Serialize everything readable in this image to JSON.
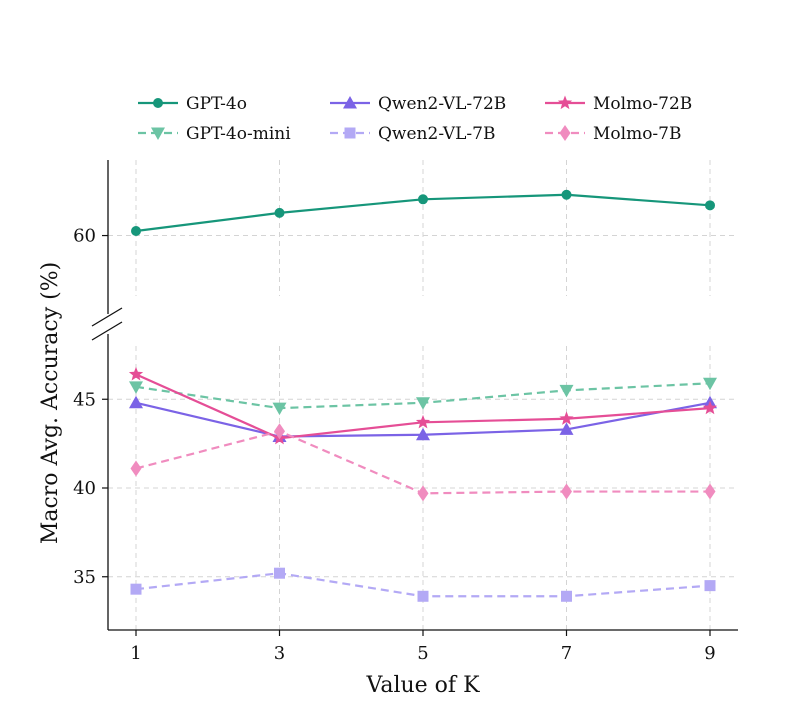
{
  "chart_data": {
    "type": "line",
    "title": "",
    "xlabel": "Value of K",
    "ylabel": "Macro Avg. Accuracy (%)",
    "x": [
      1,
      3,
      5,
      7,
      9
    ],
    "x_tick_labels": [
      "1",
      "3",
      "5",
      "7",
      "9"
    ],
    "y_axis_broken": true,
    "ylim_upper_panel": [
      56,
      65
    ],
    "ylim_lower_panel": [
      32,
      48
    ],
    "y_ticks_upper": [
      60
    ],
    "y_ticks_lower": [
      35,
      40,
      45
    ],
    "y_tick_labels_upper": [
      "60"
    ],
    "y_tick_labels_lower": [
      "35",
      "40",
      "45"
    ],
    "grid": true,
    "legend_position": "top",
    "series": [
      {
        "name": "GPT-4o",
        "values": [
          60.3,
          61.5,
          62.4,
          62.7,
          62.0
        ],
        "color": "#16967a",
        "dash": "solid",
        "marker": "circle"
      },
      {
        "name": "GPT-4o-mini",
        "values": [
          45.7,
          44.5,
          44.8,
          45.5,
          45.9
        ],
        "color": "#6cc4a4",
        "dash": "dashed",
        "marker": "triangle-down"
      },
      {
        "name": "Qwen2-VL-72B",
        "values": [
          44.8,
          42.9,
          43.0,
          43.3,
          44.8
        ],
        "color": "#7b63e6",
        "dash": "solid",
        "marker": "triangle-up"
      },
      {
        "name": "Qwen2-VL-7B",
        "values": [
          34.3,
          35.2,
          33.9,
          33.9,
          34.5
        ],
        "color": "#b3a9f5",
        "dash": "dashed",
        "marker": "square"
      },
      {
        "name": "Molmo-72B",
        "values": [
          46.4,
          42.8,
          43.7,
          43.9,
          44.5
        ],
        "color": "#e54e96",
        "dash": "solid",
        "marker": "star"
      },
      {
        "name": "Molmo-7B",
        "values": [
          41.1,
          43.2,
          39.7,
          39.8,
          39.8
        ],
        "color": "#f08cbf",
        "dash": "dashed",
        "marker": "diamond"
      }
    ]
  }
}
